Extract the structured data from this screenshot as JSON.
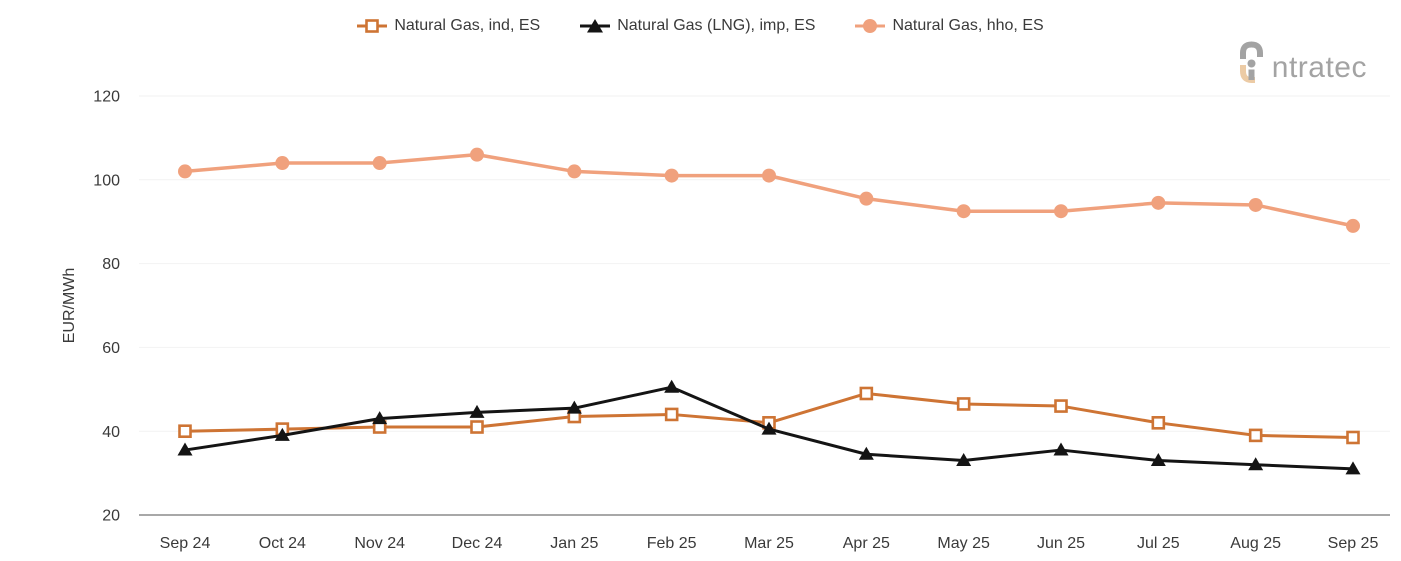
{
  "logo": {
    "brand": "intratec",
    "brand_suffix": "ntratec"
  },
  "colors": {
    "ind_orange": "#CE7434",
    "lng_black": "#141414",
    "hho_salmon": "#F0A17D",
    "grid_line": "#f2f2f2",
    "axis_line": "#8c8c8c",
    "tick_text": "#3a3a3a",
    "logo_gray": "#a3a3a3",
    "logo_tan": "#eccba5"
  },
  "chart_data": {
    "type": "line",
    "title": "",
    "xlabel": "",
    "ylabel": "EUR/MWh",
    "ylim": [
      20,
      120
    ],
    "yticks": [
      20,
      40,
      60,
      80,
      100,
      120
    ],
    "grid": "horizontal",
    "legend_position": "top-center",
    "categories": [
      "Sep 24",
      "Oct 24",
      "Nov 24",
      "Dec 24",
      "Jan 25",
      "Feb 25",
      "Mar 25",
      "Apr 25",
      "May 25",
      "Jun 25",
      "Jul 25",
      "Aug 25",
      "Sep 25"
    ],
    "series": [
      {
        "name": "Natural Gas, ind, ES",
        "color": "#CE7434",
        "marker": "square-open",
        "values": [
          40,
          40.5,
          41,
          41,
          43.5,
          44,
          42,
          49,
          46.5,
          46,
          42,
          39,
          38.5
        ]
      },
      {
        "name": "Natural Gas (LNG), imp, ES",
        "color": "#141414",
        "marker": "triangle-up",
        "values": [
          35.5,
          39,
          43,
          44.5,
          45.5,
          50.5,
          40.5,
          34.5,
          33,
          35.5,
          33,
          32,
          31
        ]
      },
      {
        "name": "Natural Gas, hho, ES",
        "color": "#F0A17D",
        "marker": "circle",
        "values": [
          102,
          104,
          104,
          106,
          102,
          101,
          101,
          95.5,
          92.5,
          92.5,
          94.5,
          94,
          89
        ]
      }
    ]
  }
}
